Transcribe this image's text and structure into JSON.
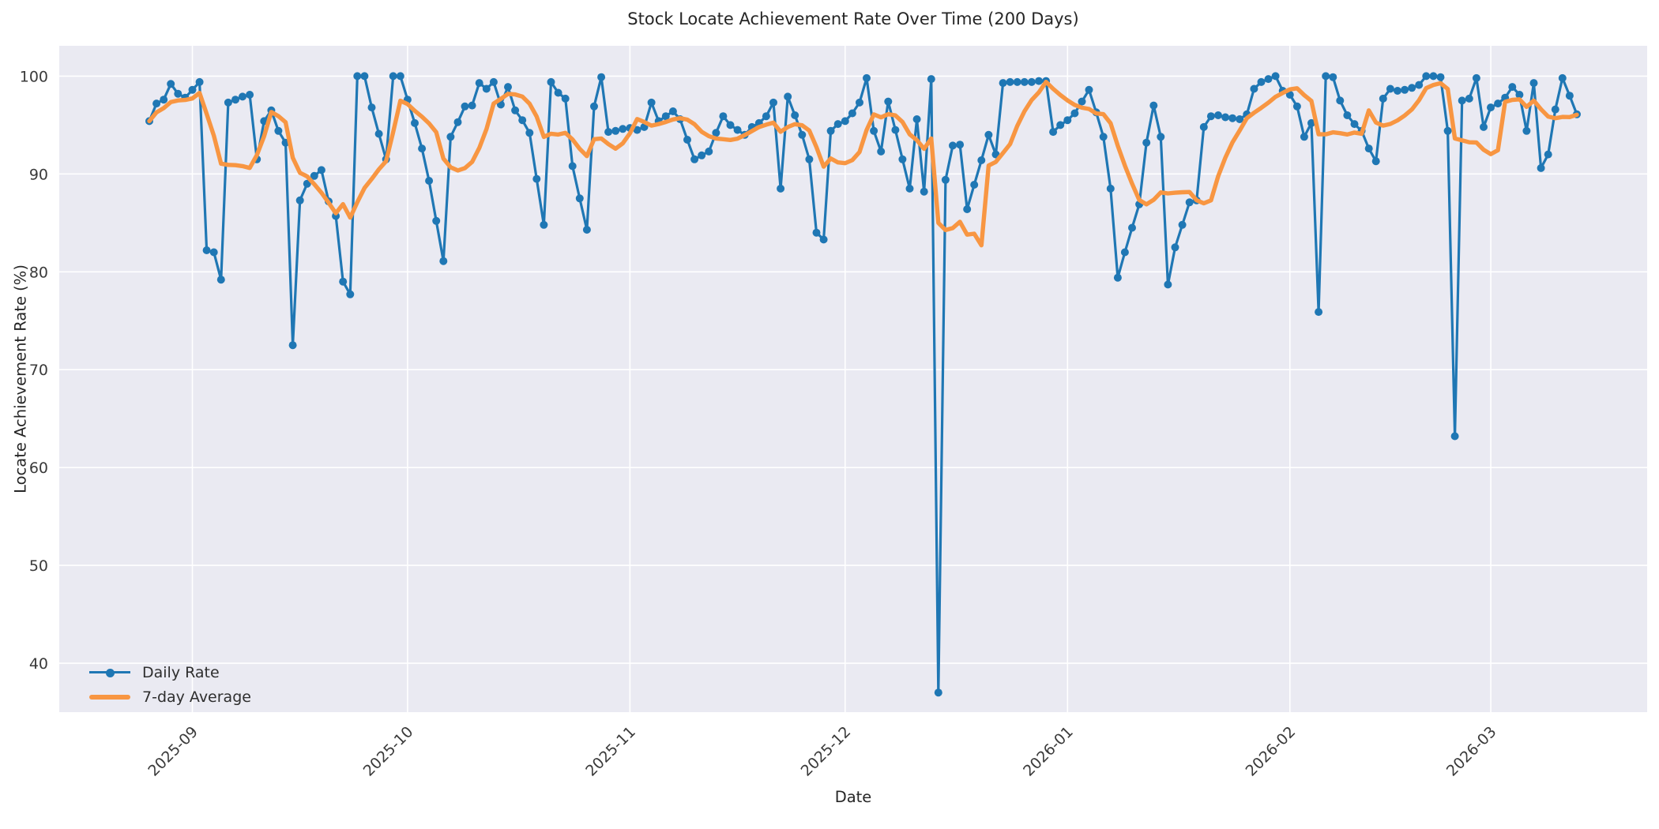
{
  "title": "Stock Locate Achievement Rate Over Time (200 Days)",
  "chart_data": {
    "type": "line",
    "title": "Stock Locate Achievement Rate Over Time (200 Days)",
    "xlabel": "Date",
    "ylabel": "Locate Achievement Rate (%)",
    "start_date": "2025-08-26",
    "days": 200,
    "x_tick_labels": [
      "2025-09",
      "2025-10",
      "2025-11",
      "2025-12",
      "2026-01",
      "2026-02",
      "2026-03"
    ],
    "y_ticks": [
      40,
      50,
      60,
      70,
      80,
      90,
      100
    ],
    "ylim": [
      35.0,
      103.1
    ],
    "grid": true,
    "plot_bg": "#eaeaf2",
    "grid_color": "#ffffff",
    "text_color": "#3a3a3a",
    "legend_position": "lower left",
    "legend": [
      {
        "label": "Daily Rate",
        "color": "#1f77b4",
        "marker": "circle"
      },
      {
        "label": "7-day Average",
        "color": "#f89642",
        "marker": "line"
      }
    ],
    "series": [
      {
        "name": "Daily Rate",
        "color": "#1f77b4",
        "values": [
          95.4,
          97.2,
          97.6,
          99.2,
          98.2,
          97.8,
          98.6,
          99.4,
          82.2,
          82.0,
          79.2,
          97.3,
          97.6,
          97.9,
          98.1,
          91.5,
          95.4,
          96.5,
          94.4,
          93.2,
          72.5,
          87.3,
          89.0,
          89.8,
          90.4,
          87.2,
          85.7,
          79.0,
          77.7,
          100.0,
          100.0,
          96.8,
          94.1,
          91.5,
          100.0,
          100.0,
          97.6,
          95.2,
          92.6,
          89.3,
          85.2,
          81.1,
          93.8,
          95.3,
          96.9,
          97.0,
          99.3,
          98.7,
          99.4,
          97.1,
          98.9,
          96.5,
          95.5,
          94.2,
          89.5,
          84.8,
          99.4,
          98.3,
          97.7,
          90.8,
          87.5,
          84.3,
          96.9,
          99.9,
          94.3,
          94.4,
          94.6,
          94.7,
          94.5,
          94.8,
          97.3,
          95.4,
          95.9,
          96.4,
          95.6,
          93.5,
          91.5,
          91.9,
          92.3,
          94.2,
          95.9,
          95.0,
          94.5,
          94.0,
          94.8,
          95.2,
          95.9,
          97.3,
          88.5,
          97.9,
          96.0,
          94.0,
          91.5,
          84.0,
          83.3,
          94.4,
          95.1,
          95.4,
          96.2,
          97.3,
          99.8,
          94.4,
          92.3,
          97.4,
          94.5,
          91.5,
          88.5,
          95.6,
          88.2,
          99.7,
          37.0,
          89.4,
          92.9,
          93.0,
          86.4,
          88.9,
          91.4,
          94.0,
          92.0,
          99.3,
          99.4,
          99.4,
          99.4,
          99.4,
          99.5,
          99.5,
          94.3,
          95.0,
          95.5,
          96.2,
          97.4,
          98.6,
          96.3,
          93.8,
          88.5,
          79.4,
          82.0,
          84.5,
          86.9,
          93.2,
          97.0,
          93.8,
          78.7,
          82.5,
          84.8,
          87.1,
          87.3,
          94.8,
          95.9,
          96.0,
          95.8,
          95.7,
          95.6,
          96.1,
          98.7,
          99.4,
          99.7,
          100.0,
          98.5,
          98.1,
          96.9,
          93.8,
          95.2,
          75.9,
          100.0,
          99.9,
          97.5,
          96.0,
          95.1,
          94.4,
          92.6,
          91.3,
          97.7,
          98.7,
          98.5,
          98.6,
          98.8,
          99.1,
          100.0,
          100.0,
          99.9,
          94.4,
          63.2,
          97.5,
          97.7,
          99.8,
          94.8,
          96.8,
          97.2,
          97.8,
          98.9,
          98.1,
          94.4,
          99.3,
          90.6,
          92.0,
          96.6,
          99.8,
          98.0,
          96.1
        ]
      },
      {
        "name": "7-day Average",
        "color": "#f89642",
        "derived": "rolling_mean_window_7_min_periods_1_of_Daily_Rate"
      }
    ]
  }
}
